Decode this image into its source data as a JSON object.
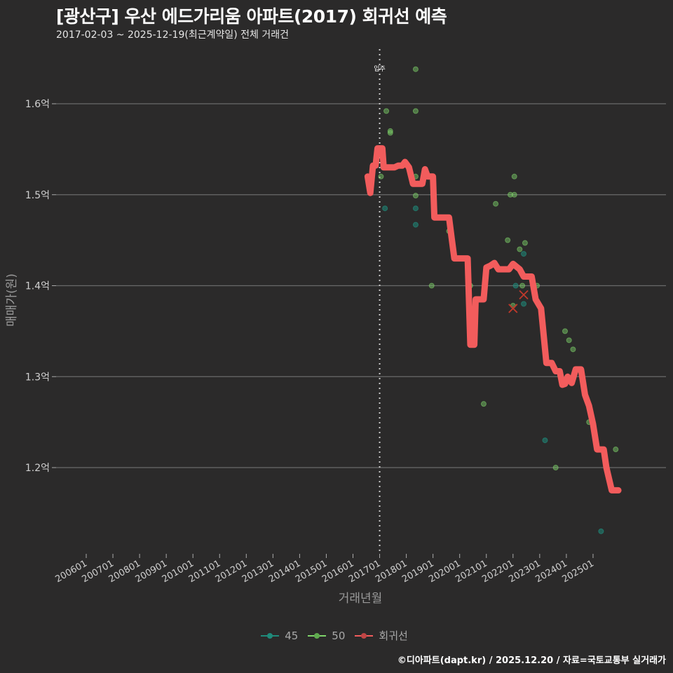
{
  "header": {
    "title": "[광산구] 우산 에드가리움 아파트(2017) 회귀선 예측",
    "subtitle": "2017-02-03 ~ 2025-12-19(최근계약일) 전체 거래건"
  },
  "footer": {
    "credit": "©디아파트(dapt.kr) / 2025.12.20 / 자료=국토교통부 실거래가"
  },
  "colors": {
    "background": "#2b2a2a",
    "grid": "#6a6a6a",
    "series_45": "#1f8a7a",
    "series_50": "#7fd46a",
    "regression": "#f25c5c",
    "marker_line": "#cccccc"
  },
  "chart_data": {
    "type": "scatter",
    "title": "[광산구] 우산 에드가리움 아파트(2017) 회귀선 예측",
    "subtitle": "2017-02-03 ~ 2025-12-19(최근계약일) 전체 거래건",
    "xlabel": "거래년월",
    "ylabel": "매매가(원)",
    "x_ticks": [
      "200601",
      "200701",
      "200801",
      "200901",
      "201001",
      "201101",
      "201201",
      "201301",
      "201401",
      "201501",
      "201601",
      "201701",
      "201801",
      "201901",
      "202001",
      "202101",
      "202201",
      "202301",
      "202401",
      "202501"
    ],
    "y_ticks": [
      "1.2억",
      "1.3억",
      "1.4억",
      "1.5억",
      "1.6억"
    ],
    "y_tick_values": [
      1.2,
      1.3,
      1.4,
      1.5,
      1.6
    ],
    "ylim": [
      1.105,
      1.665
    ],
    "grid": "horizontal major only",
    "legend_position": "bottom",
    "annotations": [
      {
        "type": "vline",
        "x": "201701",
        "label": "입주",
        "style": "dotted"
      }
    ],
    "legend": [
      "45",
      "50",
      "회귀선"
    ],
    "series": [
      {
        "name": "45",
        "type": "scatter",
        "points": [
          {
            "x": 2017.2,
            "y": 1.485
          },
          {
            "x": 2018.35,
            "y": 1.485
          },
          {
            "x": 2018.35,
            "y": 1.467
          },
          {
            "x": 2022.1,
            "y": 1.4
          },
          {
            "x": 2022.4,
            "y": 1.38
          },
          {
            "x": 2022.4,
            "y": 1.435
          },
          {
            "x": 2023.2,
            "y": 1.23
          },
          {
            "x": 2025.3,
            "y": 1.13
          }
        ]
      },
      {
        "name": "50",
        "type": "scatter",
        "points": [
          {
            "x": 2018.35,
            "y": 1.638
          },
          {
            "x": 2017.25,
            "y": 1.592
          },
          {
            "x": 2018.35,
            "y": 1.592
          },
          {
            "x": 2017.4,
            "y": 1.57
          },
          {
            "x": 2017.4,
            "y": 1.568
          },
          {
            "x": 2017.05,
            "y": 1.52
          },
          {
            "x": 2018.35,
            "y": 1.52
          },
          {
            "x": 2018.35,
            "y": 1.499
          },
          {
            "x": 2018.95,
            "y": 1.4
          },
          {
            "x": 2019.6,
            "y": 1.46
          },
          {
            "x": 2020.4,
            "y": 1.4
          },
          {
            "x": 2020.9,
            "y": 1.27
          },
          {
            "x": 2021.35,
            "y": 1.49
          },
          {
            "x": 2021.8,
            "y": 1.45
          },
          {
            "x": 2021.9,
            "y": 1.5
          },
          {
            "x": 2022.05,
            "y": 1.5
          },
          {
            "x": 2022.05,
            "y": 1.52
          },
          {
            "x": 2022.25,
            "y": 1.44
          },
          {
            "x": 2022.45,
            "y": 1.447
          },
          {
            "x": 2022.0,
            "y": 1.378
          },
          {
            "x": 2022.35,
            "y": 1.4
          },
          {
            "x": 2022.9,
            "y": 1.4
          },
          {
            "x": 2023.95,
            "y": 1.35
          },
          {
            "x": 2024.1,
            "y": 1.34
          },
          {
            "x": 2024.25,
            "y": 1.33
          },
          {
            "x": 2023.6,
            "y": 1.2
          },
          {
            "x": 2024.85,
            "y": 1.25
          },
          {
            "x": 2025.85,
            "y": 1.22
          }
        ]
      },
      {
        "name": "회귀선",
        "type": "line",
        "points": [
          {
            "x": 2016.55,
            "y": 1.52
          },
          {
            "x": 2016.65,
            "y": 1.502
          },
          {
            "x": 2016.75,
            "y": 1.532
          },
          {
            "x": 2016.85,
            "y": 1.532
          },
          {
            "x": 2016.92,
            "y": 1.551
          },
          {
            "x": 2017.1,
            "y": 1.551
          },
          {
            "x": 2017.15,
            "y": 1.53
          },
          {
            "x": 2017.55,
            "y": 1.53
          },
          {
            "x": 2017.7,
            "y": 1.532
          },
          {
            "x": 2017.85,
            "y": 1.532
          },
          {
            "x": 2017.95,
            "y": 1.536
          },
          {
            "x": 2018.1,
            "y": 1.53
          },
          {
            "x": 2018.25,
            "y": 1.512
          },
          {
            "x": 2018.6,
            "y": 1.512
          },
          {
            "x": 2018.7,
            "y": 1.528
          },
          {
            "x": 2018.8,
            "y": 1.52
          },
          {
            "x": 2019.0,
            "y": 1.52
          },
          {
            "x": 2019.05,
            "y": 1.475
          },
          {
            "x": 2019.6,
            "y": 1.475
          },
          {
            "x": 2019.7,
            "y": 1.452
          },
          {
            "x": 2019.8,
            "y": 1.43
          },
          {
            "x": 2020.3,
            "y": 1.43
          },
          {
            "x": 2020.4,
            "y": 1.335
          },
          {
            "x": 2020.55,
            "y": 1.335
          },
          {
            "x": 2020.6,
            "y": 1.385
          },
          {
            "x": 2020.9,
            "y": 1.385
          },
          {
            "x": 2021.0,
            "y": 1.42
          },
          {
            "x": 2021.15,
            "y": 1.422
          },
          {
            "x": 2021.3,
            "y": 1.425
          },
          {
            "x": 2021.45,
            "y": 1.418
          },
          {
            "x": 2021.85,
            "y": 1.418
          },
          {
            "x": 2022.0,
            "y": 1.424
          },
          {
            "x": 2022.25,
            "y": 1.418
          },
          {
            "x": 2022.4,
            "y": 1.41
          },
          {
            "x": 2022.7,
            "y": 1.41
          },
          {
            "x": 2022.85,
            "y": 1.385
          },
          {
            "x": 2023.05,
            "y": 1.375
          },
          {
            "x": 2023.25,
            "y": 1.315
          },
          {
            "x": 2023.45,
            "y": 1.315
          },
          {
            "x": 2023.6,
            "y": 1.306
          },
          {
            "x": 2023.75,
            "y": 1.306
          },
          {
            "x": 2023.85,
            "y": 1.291
          },
          {
            "x": 2023.95,
            "y": 1.292
          },
          {
            "x": 2024.05,
            "y": 1.3
          },
          {
            "x": 2024.2,
            "y": 1.293
          },
          {
            "x": 2024.35,
            "y": 1.308
          },
          {
            "x": 2024.55,
            "y": 1.308
          },
          {
            "x": 2024.7,
            "y": 1.28
          },
          {
            "x": 2024.85,
            "y": 1.268
          },
          {
            "x": 2025.0,
            "y": 1.248
          },
          {
            "x": 2025.15,
            "y": 1.22
          },
          {
            "x": 2025.4,
            "y": 1.22
          },
          {
            "x": 2025.5,
            "y": 1.2
          },
          {
            "x": 2025.7,
            "y": 1.175
          },
          {
            "x": 2025.95,
            "y": 1.175
          }
        ]
      }
    ],
    "excluded_points_x_marked": [
      {
        "x": 2022.0,
        "y": 1.375
      },
      {
        "x": 2022.4,
        "y": 1.39
      }
    ]
  },
  "legend": {
    "items": [
      {
        "label": "45",
        "color": "#1f8a7a"
      },
      {
        "label": "50",
        "color": "#7fd46a"
      },
      {
        "label": "회귀선",
        "color": "#f25c5c"
      }
    ]
  }
}
